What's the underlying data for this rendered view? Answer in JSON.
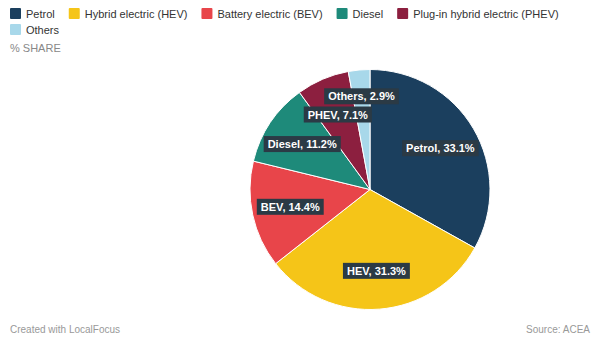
{
  "chart_data": {
    "type": "pie",
    "categories": [
      "Petrol",
      "Hybrid electric (HEV)",
      "Battery electric (BEV)",
      "Diesel",
      "Plug-in hybrid electric (PHEV)",
      "Others"
    ],
    "values": [
      33.1,
      31.3,
      14.4,
      11.2,
      7.1,
      2.9
    ],
    "value_labels": [
      "Petrol, 33.1%",
      "HEV, 31.3%",
      "BEV, 14.4%",
      "Diesel, 11.2%",
      "PHEV, 7.1%",
      "Others, 2.9%"
    ],
    "colors": [
      "#1b3f5e",
      "#f5c518",
      "#e8454a",
      "#1e8a7a",
      "#8c1f3f",
      "#a8d8ea"
    ],
    "ylabel": "% SHARE",
    "annotations": [
      "Created with LocalFocus",
      "Source: ACEA"
    ],
    "legend": "upper left",
    "data_labels": true
  }
}
